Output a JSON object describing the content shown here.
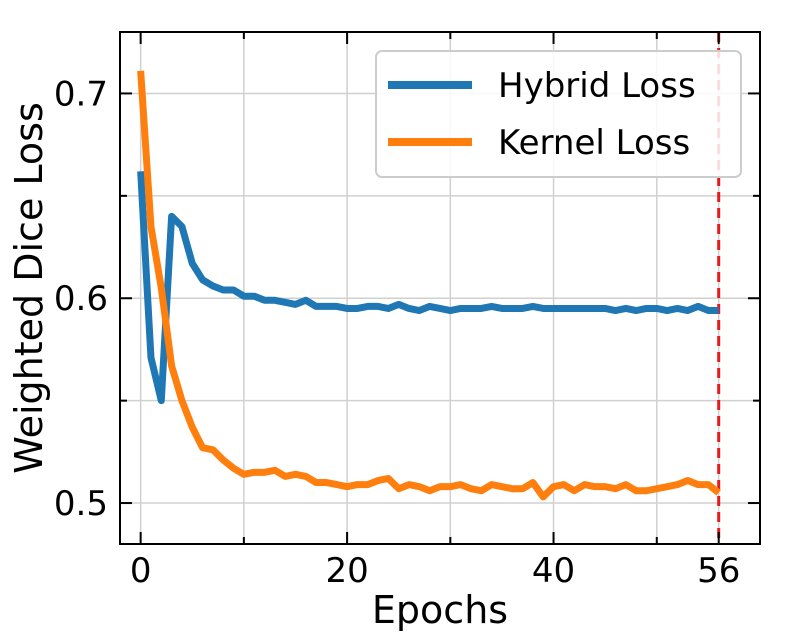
{
  "chart_data": {
    "type": "line",
    "title": "",
    "xlabel": "Epochs",
    "ylabel": "Weighted Dice Loss",
    "xlim": [
      -2,
      60
    ],
    "ylim": [
      0.48,
      0.73
    ],
    "x_ticks": [
      0,
      20,
      40,
      56
    ],
    "x_ticks_minor": [
      10,
      30,
      50
    ],
    "x_grid": [
      0,
      10,
      20,
      30,
      40,
      50,
      56
    ],
    "y_ticks": [
      0.5,
      0.6,
      0.7
    ],
    "y_ticks_minor": [
      0.55,
      0.65
    ],
    "y_grid": [
      0.5,
      0.55,
      0.6,
      0.65,
      0.7
    ],
    "grid": true,
    "legend_position": "top-right",
    "vline": {
      "x": 56,
      "color": "#e41a1c",
      "style": "dashed"
    },
    "series": [
      {
        "name": "Hybrid Loss",
        "color": "#1f77b4",
        "x": [
          0,
          1,
          2,
          3,
          4,
          5,
          6,
          7,
          8,
          9,
          10,
          11,
          12,
          13,
          14,
          15,
          16,
          17,
          18,
          19,
          20,
          21,
          22,
          23,
          24,
          25,
          26,
          27,
          28,
          29,
          30,
          31,
          32,
          33,
          34,
          35,
          36,
          37,
          38,
          39,
          40,
          41,
          42,
          43,
          44,
          45,
          46,
          47,
          48,
          49,
          50,
          51,
          52,
          53,
          54,
          55,
          56
        ],
        "values": [
          0.662,
          0.571,
          0.55,
          0.64,
          0.635,
          0.617,
          0.609,
          0.606,
          0.604,
          0.604,
          0.601,
          0.601,
          0.599,
          0.599,
          0.598,
          0.597,
          0.599,
          0.596,
          0.596,
          0.596,
          0.595,
          0.595,
          0.596,
          0.596,
          0.595,
          0.597,
          0.595,
          0.594,
          0.596,
          0.595,
          0.594,
          0.595,
          0.595,
          0.595,
          0.596,
          0.595,
          0.595,
          0.595,
          0.596,
          0.595,
          0.595,
          0.595,
          0.595,
          0.595,
          0.595,
          0.595,
          0.594,
          0.595,
          0.594,
          0.595,
          0.595,
          0.594,
          0.595,
          0.594,
          0.596,
          0.594,
          0.594
        ]
      },
      {
        "name": "Kernel Loss",
        "color": "#ff7f0e",
        "x": [
          0,
          1,
          2,
          3,
          4,
          5,
          6,
          7,
          8,
          9,
          10,
          11,
          12,
          13,
          14,
          15,
          16,
          17,
          18,
          19,
          20,
          21,
          22,
          23,
          24,
          25,
          26,
          27,
          28,
          29,
          30,
          31,
          32,
          33,
          34,
          35,
          36,
          37,
          38,
          39,
          40,
          41,
          42,
          43,
          44,
          45,
          46,
          47,
          48,
          49,
          50,
          51,
          52,
          53,
          54,
          55,
          56
        ],
        "values": [
          0.711,
          0.635,
          0.605,
          0.567,
          0.55,
          0.537,
          0.527,
          0.526,
          0.521,
          0.517,
          0.514,
          0.515,
          0.515,
          0.516,
          0.513,
          0.514,
          0.513,
          0.51,
          0.51,
          0.509,
          0.508,
          0.509,
          0.509,
          0.511,
          0.512,
          0.507,
          0.509,
          0.508,
          0.506,
          0.508,
          0.508,
          0.509,
          0.507,
          0.506,
          0.509,
          0.508,
          0.507,
          0.507,
          0.51,
          0.503,
          0.508,
          0.509,
          0.506,
          0.509,
          0.508,
          0.508,
          0.507,
          0.509,
          0.506,
          0.506,
          0.507,
          0.508,
          0.509,
          0.511,
          0.509,
          0.509,
          0.505
        ]
      }
    ]
  }
}
